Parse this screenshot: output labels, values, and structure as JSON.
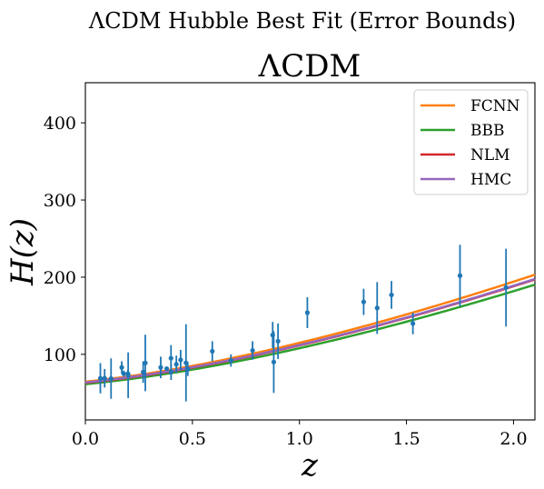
{
  "chart_data": {
    "type": "scatter",
    "suptitle": "ΛCDM Hubble Best Fit (Error Bounds)",
    "title": "ΛCDM",
    "xlabel": "z",
    "ylabel": "H(z)",
    "xlim": [
      0.0,
      2.1
    ],
    "ylim": [
      15,
      452
    ],
    "xticks": [
      0.0,
      0.5,
      1.0,
      1.5,
      2.0
    ],
    "xtick_labels": [
      "0.0",
      "0.5",
      "1.0",
      "1.5",
      "2.0"
    ],
    "yticks": [
      100,
      200,
      300,
      400
    ],
    "ytick_labels": [
      "100",
      "200",
      "300",
      "400"
    ],
    "grid": false,
    "legend_position": "top-right",
    "data_color": "#1f77b4",
    "observations": {
      "z": [
        0.07,
        0.09,
        0.12,
        0.17,
        0.179,
        0.199,
        0.2,
        0.27,
        0.28,
        0.352,
        0.38,
        0.4,
        0.4004,
        0.425,
        0.445,
        0.47,
        0.4783,
        0.593,
        0.68,
        0.781,
        0.875,
        0.88,
        0.9,
        1.037,
        1.3,
        1.363,
        1.43,
        1.53,
        1.75,
        1.965
      ],
      "H": [
        69,
        69,
        68.6,
        83,
        75,
        75,
        72.9,
        77,
        88.8,
        83,
        81.5,
        95,
        77,
        87.1,
        92.8,
        89,
        80.9,
        104,
        92,
        105,
        125,
        90,
        117,
        154,
        168,
        160,
        177,
        140,
        202,
        186.5
      ],
      "sigma": [
        19.6,
        12,
        26.2,
        8,
        4,
        5,
        29.6,
        14,
        36.6,
        14,
        1.9,
        17,
        10.2,
        11.2,
        12.9,
        50,
        9,
        13,
        8,
        12,
        17,
        40,
        23,
        20,
        17,
        33.6,
        18,
        14,
        40,
        50.4
      ]
    },
    "series": [
      {
        "name": "FCNN",
        "color": "#ff7f0e",
        "H0": 64.5,
        "Om": 0.31
      },
      {
        "name": "BBB",
        "color": "#2ca02c",
        "H0": 61.3,
        "Om": 0.3
      },
      {
        "name": "NLM",
        "color": "#d62728",
        "H0": 63.0,
        "Om": 0.305
      },
      {
        "name": "HMC",
        "color": "#9467bd",
        "H0": 63.5,
        "Om": 0.302
      }
    ]
  }
}
